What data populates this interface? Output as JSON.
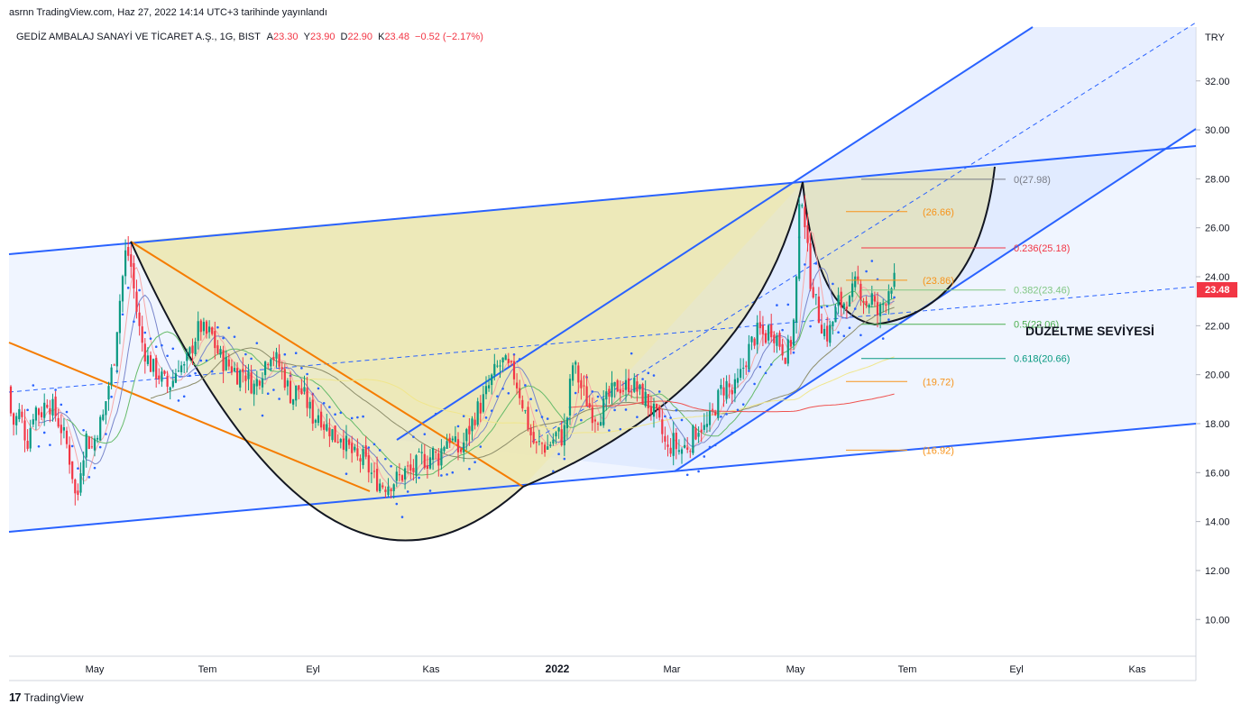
{
  "header": {
    "published": "asrnn TradingView.com, Haz 27, 2022 14:14 UTC+3 tarihinde yayınlandı"
  },
  "legend": {
    "symbol": "GEDİZ AMBALAJ SANAYİ VE TİCARET A.Ş., 1G, BIST",
    "open_label": "A",
    "open": "23.30",
    "high_label": "Y",
    "high": "23.90",
    "low_label": "D",
    "low": "22.90",
    "close_label": "K",
    "close": "23.48",
    "change": "−0.52 (−2.17%)"
  },
  "footer": {
    "brand": "TradingView",
    "logo_glyph": "17"
  },
  "chart_data": {
    "type": "candlestick",
    "currency": "TRY",
    "last_price": "23.48",
    "ylim": [
      8.5,
      34.2
    ],
    "y_ticks": [
      "10.00",
      "12.00",
      "14.00",
      "16.00",
      "18.00",
      "20.00",
      "22.00",
      "24.00",
      "26.00",
      "28.00",
      "30.00",
      "32.00"
    ],
    "x_ticks": [
      {
        "label": "May",
        "bold": false
      },
      {
        "label": "Tem",
        "bold": false
      },
      {
        "label": "Eyl",
        "bold": false
      },
      {
        "label": "Kas",
        "bold": false
      },
      {
        "label": "2022",
        "bold": true
      },
      {
        "label": "Mar",
        "bold": false
      },
      {
        "label": "May",
        "bold": false
      },
      {
        "label": "Tem",
        "bold": false
      },
      {
        "label": "Eyl",
        "bold": false
      },
      {
        "label": "Kas",
        "bold": false
      }
    ],
    "annotation": "DÜZELTME SEVİYESİ",
    "fib_levels": [
      {
        "label": "0(27.98)",
        "value": 27.98,
        "color": "#787b86"
      },
      {
        "label": "0.236(25.18)",
        "value": 25.18,
        "color": "#f23645"
      },
      {
        "label": "0.382(23.46)",
        "value": 23.46,
        "color": "#81c784"
      },
      {
        "label": "0.5(22.06)",
        "value": 22.06,
        "color": "#4caf50"
      },
      {
        "label": "0.618(20.66)",
        "value": 20.66,
        "color": "#089981"
      }
    ],
    "target_levels": [
      {
        "label": "(26.66)",
        "value": 26.66,
        "color": "#f7931a"
      },
      {
        "label": "(23.86)",
        "value": 23.86,
        "color": "#f7931a"
      },
      {
        "label": "(19.72)",
        "value": 19.72,
        "color": "#f7931a"
      },
      {
        "label": "(16.92)",
        "value": 16.92,
        "color": "#f7931a"
      }
    ],
    "price_path": [
      [
        0,
        19.5
      ],
      [
        8,
        19.0
      ],
      [
        15,
        18.0
      ],
      [
        22,
        18.5
      ],
      [
        30,
        17.2
      ],
      [
        38,
        18.7
      ],
      [
        45,
        18.4
      ],
      [
        52,
        19.0
      ],
      [
        60,
        18.5
      ],
      [
        68,
        17.8
      ],
      [
        75,
        17.0
      ],
      [
        80,
        16.0
      ],
      [
        85,
        14.6
      ],
      [
        90,
        16.5
      ],
      [
        96,
        17.5
      ],
      [
        102,
        17.0
      ],
      [
        108,
        17.8
      ],
      [
        114,
        18.2
      ],
      [
        120,
        19.5
      ],
      [
        126,
        20.5
      ],
      [
        131,
        22.5
      ],
      [
        136,
        24.0
      ],
      [
        140,
        25.2
      ],
      [
        145,
        24.5
      ],
      [
        150,
        23.0
      ],
      [
        156,
        21.5
      ],
      [
        162,
        20.8
      ],
      [
        168,
        20.3
      ],
      [
        174,
        20.1
      ],
      [
        180,
        19.8
      ],
      [
        186,
        19.5
      ],
      [
        192,
        19.8
      ],
      [
        198,
        20.5
      ],
      [
        204,
        20.2
      ],
      [
        210,
        20.8
      ],
      [
        216,
        21.5
      ],
      [
        222,
        22.0
      ],
      [
        228,
        21.6
      ],
      [
        234,
        21.7
      ],
      [
        240,
        21.0
      ],
      [
        246,
        20.6
      ],
      [
        252,
        20.4
      ],
      [
        258,
        20.3
      ],
      [
        264,
        20.0
      ],
      [
        270,
        20.2
      ],
      [
        276,
        19.8
      ],
      [
        282,
        19.5
      ],
      [
        288,
        20.0
      ],
      [
        294,
        20.5
      ],
      [
        300,
        21.0
      ],
      [
        306,
        20.6
      ],
      [
        312,
        20.2
      ],
      [
        318,
        19.6
      ],
      [
        324,
        19.0
      ],
      [
        330,
        19.5
      ],
      [
        336,
        19.2
      ],
      [
        342,
        18.7
      ],
      [
        348,
        18.2
      ],
      [
        354,
        18.5
      ],
      [
        360,
        17.9
      ],
      [
        366,
        17.8
      ],
      [
        372,
        17.4
      ],
      [
        378,
        17.6
      ],
      [
        384,
        17.1
      ],
      [
        390,
        16.8
      ],
      [
        396,
        16.5
      ],
      [
        402,
        16.6
      ],
      [
        408,
        16.2
      ],
      [
        414,
        15.8
      ],
      [
        420,
        15.6
      ],
      [
        426,
        15.5
      ],
      [
        432,
        15.6
      ],
      [
        438,
        15.7
      ],
      [
        444,
        15.8
      ],
      [
        450,
        16.1
      ],
      [
        456,
        16.0
      ],
      [
        462,
        16.3
      ],
      [
        468,
        16.6
      ],
      [
        474,
        16.5
      ],
      [
        480,
        16.8
      ],
      [
        486,
        16.6
      ],
      [
        492,
        17.2
      ],
      [
        498,
        17.5
      ],
      [
        504,
        17.1
      ],
      [
        510,
        16.8
      ],
      [
        516,
        17.4
      ],
      [
        522,
        17.9
      ],
      [
        528,
        18.5
      ],
      [
        534,
        18.8
      ],
      [
        540,
        19.3
      ],
      [
        546,
        19.9
      ],
      [
        552,
        20.3
      ],
      [
        558,
        20.5
      ],
      [
        564,
        20.2
      ],
      [
        570,
        20.0
      ],
      [
        576,
        19.3
      ],
      [
        582,
        18.5
      ],
      [
        588,
        17.6
      ],
      [
        594,
        17.0
      ],
      [
        600,
        17.2
      ],
      [
        606,
        17.0
      ],
      [
        612,
        17.3
      ],
      [
        618,
        17.6
      ],
      [
        624,
        17.4
      ],
      [
        630,
        18.5
      ],
      [
        634,
        20.5
      ],
      [
        638,
        20.2
      ],
      [
        644,
        19.5
      ],
      [
        650,
        19.0
      ],
      [
        656,
        18.5
      ],
      [
        662,
        18.3
      ],
      [
        668,
        18.6
      ],
      [
        674,
        19.0
      ],
      [
        680,
        19.3
      ],
      [
        686,
        19.6
      ],
      [
        692,
        19.4
      ],
      [
        698,
        19.7
      ],
      [
        704,
        19.5
      ],
      [
        710,
        19.2
      ],
      [
        716,
        19.0
      ],
      [
        722,
        18.6
      ],
      [
        728,
        18.2
      ],
      [
        734,
        17.6
      ],
      [
        740,
        16.8
      ],
      [
        746,
        17.3
      ],
      [
        752,
        16.9
      ],
      [
        758,
        17.0
      ],
      [
        764,
        17.2
      ],
      [
        770,
        17.6
      ],
      [
        776,
        18.0
      ],
      [
        782,
        17.7
      ],
      [
        788,
        18.2
      ],
      [
        794,
        18.8
      ],
      [
        800,
        19.4
      ],
      [
        806,
        19.6
      ],
      [
        812,
        19.2
      ],
      [
        818,
        19.6
      ],
      [
        824,
        20.3
      ],
      [
        830,
        21.0
      ],
      [
        836,
        21.5
      ],
      [
        842,
        21.8
      ],
      [
        848,
        21.5
      ],
      [
        854,
        22.0
      ],
      [
        860,
        21.6
      ],
      [
        866,
        21.2
      ],
      [
        872,
        20.8
      ],
      [
        878,
        21.5
      ],
      [
        882,
        22.8
      ],
      [
        886,
        26.5
      ],
      [
        890,
        27.5
      ],
      [
        894,
        25.5
      ],
      [
        898,
        24.0
      ],
      [
        902,
        23.5
      ],
      [
        906,
        22.6
      ],
      [
        910,
        22.2
      ],
      [
        914,
        21.8
      ],
      [
        918,
        21.6
      ],
      [
        922,
        22.0
      ],
      [
        926,
        22.5
      ],
      [
        930,
        23.0
      ],
      [
        934,
        22.8
      ],
      [
        938,
        23.2
      ],
      [
        942,
        22.9
      ],
      [
        946,
        23.4
      ],
      [
        950,
        23.8
      ],
      [
        954,
        23.5
      ],
      [
        958,
        23.1
      ],
      [
        962,
        22.8
      ],
      [
        966,
        23.3
      ],
      [
        970,
        22.7
      ],
      [
        974,
        22.4
      ],
      [
        978,
        22.8
      ],
      [
        982,
        23.2
      ],
      [
        986,
        23.6
      ],
      [
        990,
        24.0
      ],
      [
        994,
        23.48
      ]
    ]
  }
}
